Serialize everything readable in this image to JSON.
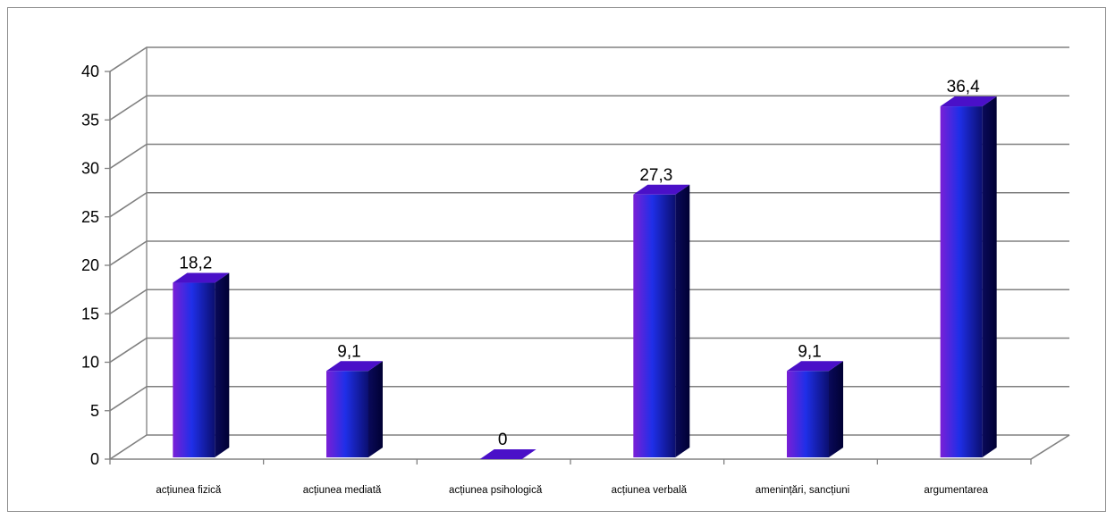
{
  "chart_data": {
    "type": "bar",
    "categories": [
      "acțiunea  fizică",
      "acțiunea mediată",
      "acțiunea psihologică",
      "acțiunea verbală",
      "amenințări, sancțiuni",
      "argumentarea"
    ],
    "values": [
      18.2,
      9.1,
      0,
      27.3,
      9.1,
      36.4
    ],
    "value_labels": [
      "18,2",
      "9,1",
      "0",
      "27,3",
      "9,1",
      "36,4"
    ],
    "title": "",
    "xlabel": "",
    "ylabel": "",
    "ylim": [
      0,
      40
    ],
    "yticks": [
      0,
      5,
      10,
      15,
      20,
      25,
      30,
      35,
      40
    ],
    "grid": true,
    "legend": "none",
    "style": "3d-bars",
    "colors": {
      "bar_front_left": "#7a1fd6",
      "bar_front_mid": "#1f2fe8",
      "bar_front_right": "#0b0f70",
      "bar_side": "#000033",
      "bar_top": "#4a10c8",
      "grid": "#808080"
    }
  }
}
